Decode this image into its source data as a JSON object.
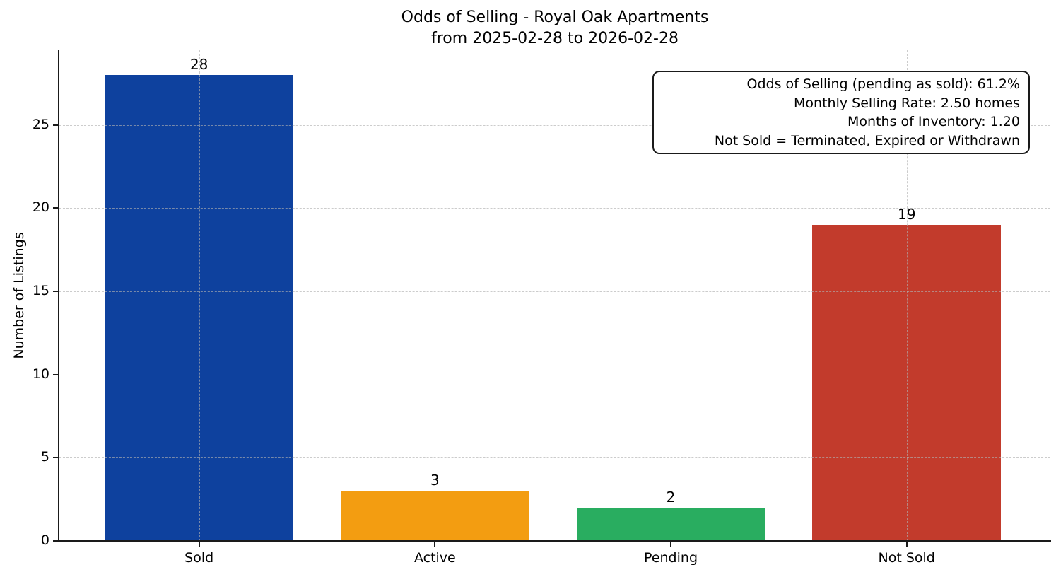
{
  "chart_data": {
    "type": "bar",
    "title": "Odds of Selling - Royal Oak Apartments",
    "subtitle": "from 2025-02-28 to 2026-02-28",
    "categories": [
      "Sold",
      "Active",
      "Pending",
      "Not Sold"
    ],
    "values": [
      28,
      3,
      2,
      19
    ],
    "value_labels": [
      "28",
      "3",
      "2",
      "19"
    ],
    "bar_colors": [
      "#0e419e",
      "#f39d11",
      "#29ad60",
      "#c23b2c"
    ],
    "xlabel": "",
    "ylabel": "Number of Listings",
    "yticks": [
      0,
      5,
      10,
      15,
      20,
      25
    ],
    "ylim": [
      0,
      29.5
    ],
    "grid": {
      "style": "dashed",
      "axes": "both",
      "above_bars": true
    },
    "legend_position": "none",
    "annotation_box": {
      "position": "top-right",
      "text_align": "right",
      "lines": [
        "Odds of Selling (pending as sold): 61.2%",
        "Monthly Selling Rate: 2.50 homes",
        "Months of Inventory: 1.20",
        "Not Sold = Terminated, Expired or Withdrawn"
      ]
    }
  }
}
